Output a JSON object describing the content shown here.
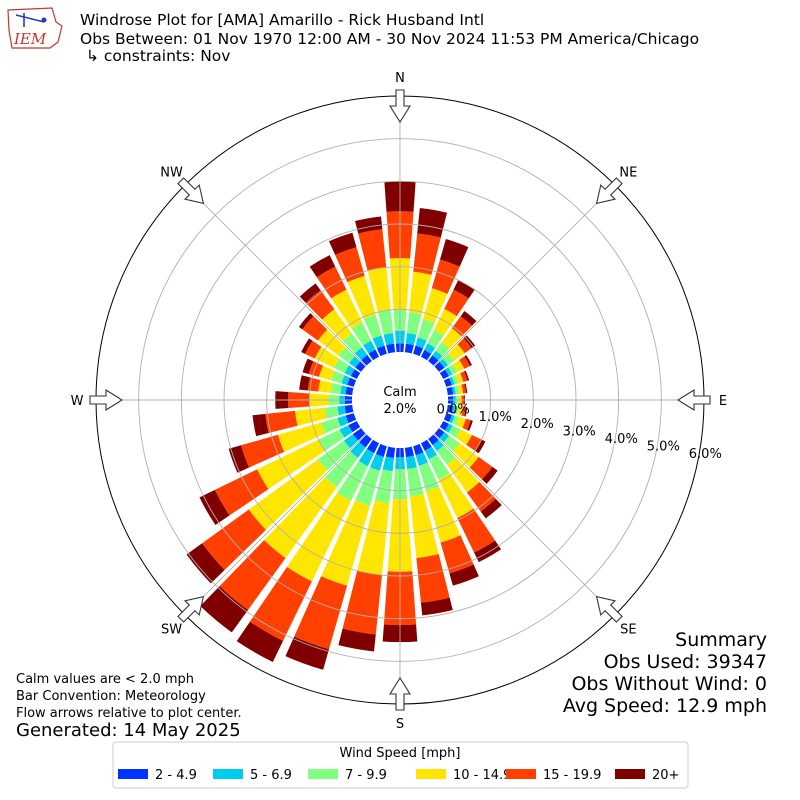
{
  "header": {
    "logo_text": "IEM",
    "title": "Windrose Plot for [AMA] Amarillo - Rick Husband Intl",
    "subtitle": "Obs Between: 01 Nov 1970 12:00 AM - 30 Nov 2024 11:53 PM America/Chicago",
    "constraints": "↳ constraints: Nov"
  },
  "notes": {
    "calm_values": "Calm values are < 2.0 mph",
    "bar_convention": "Bar Convention: Meteorology",
    "flow_arrows": "Flow arrows relative to plot center.",
    "generated": "Generated: 14 May 2025"
  },
  "summary": {
    "heading": "Summary",
    "obs_used": "Obs Used: 39347",
    "obs_without_wind": "Obs Without Wind: 0",
    "avg_speed": "Avg Speed: 12.9 mph"
  },
  "colors": {
    "bin_2_4_9": "#0033ff",
    "bin_5_6_9": "#00ccee",
    "bin_7_9_9": "#80ff80",
    "bin_10_14_9": "#ffe600",
    "bin_15_19_9": "#ff4000",
    "bin_20_plus": "#800000",
    "grid": "#b0b0b0"
  },
  "chart_data": {
    "type": "windrose",
    "calm_label": "Calm",
    "calm_value_label": "2.0%",
    "calm_percent": 2.0,
    "radial_max": 6.0,
    "radial_ticks": [
      0,
      1,
      2,
      3,
      4,
      5,
      6
    ],
    "radial_tick_labels": [
      "0.0%",
      "1.0%",
      "2.0%",
      "3.0%",
      "4.0%",
      "5.0%",
      "6.0%"
    ],
    "compass_labels": [
      {
        "label": "N",
        "deg": 0
      },
      {
        "label": "NE",
        "deg": 45
      },
      {
        "label": "E",
        "deg": 90
      },
      {
        "label": "SE",
        "deg": 135
      },
      {
        "label": "S",
        "deg": 180
      },
      {
        "label": "SW",
        "deg": 225
      },
      {
        "label": "W",
        "deg": 270
      },
      {
        "label": "NW",
        "deg": 315
      }
    ],
    "legend_title": "Wind Speed [mph]",
    "bins": [
      {
        "label": "2 - 4.9",
        "color": "#0033ff"
      },
      {
        "label": "5 - 6.9",
        "color": "#00ccee"
      },
      {
        "label": "7 - 9.9",
        "color": "#80ff80"
      },
      {
        "label": "10 - 14.9",
        "color": "#ffe600"
      },
      {
        "label": "15 - 19.9",
        "color": "#ff4000"
      },
      {
        "label": "20+",
        "color": "#800000"
      }
    ],
    "directions_deg": [
      0,
      10,
      20,
      30,
      40,
      50,
      60,
      70,
      80,
      90,
      100,
      110,
      120,
      130,
      140,
      150,
      160,
      170,
      180,
      190,
      200,
      210,
      220,
      230,
      240,
      250,
      260,
      270,
      280,
      290,
      300,
      310,
      320,
      330,
      340,
      350
    ],
    "cumulative_percent": [
      [
        0.2,
        0.5,
        1.0,
        2.2,
        3.3,
        4.0
      ],
      [
        0.2,
        0.45,
        0.95,
        1.9,
        2.8,
        3.4
      ],
      [
        0.2,
        0.4,
        0.85,
        1.6,
        2.3,
        2.8
      ],
      [
        0.18,
        0.35,
        0.7,
        1.25,
        1.75,
        2.0
      ],
      [
        0.17,
        0.3,
        0.55,
        0.95,
        1.3,
        1.45
      ],
      [
        0.16,
        0.27,
        0.45,
        0.75,
        0.95,
        1.05
      ],
      [
        0.15,
        0.24,
        0.37,
        0.55,
        0.7,
        0.75
      ],
      [
        0.14,
        0.21,
        0.3,
        0.42,
        0.52,
        0.56
      ],
      [
        0.13,
        0.19,
        0.26,
        0.36,
        0.43,
        0.46
      ],
      [
        0.12,
        0.18,
        0.25,
        0.32,
        0.38,
        0.4
      ],
      [
        0.13,
        0.19,
        0.26,
        0.36,
        0.43,
        0.46
      ],
      [
        0.14,
        0.21,
        0.32,
        0.48,
        0.6,
        0.65
      ],
      [
        0.15,
        0.25,
        0.45,
        0.75,
        1.0,
        1.1
      ],
      [
        0.16,
        0.3,
        0.6,
        1.15,
        1.55,
        1.7
      ],
      [
        0.18,
        0.35,
        0.75,
        1.55,
        2.1,
        2.3
      ],
      [
        0.2,
        0.42,
        0.95,
        1.95,
        2.85,
        3.1
      ],
      [
        0.22,
        0.48,
        1.1,
        2.35,
        3.1,
        3.4
      ],
      [
        0.22,
        0.5,
        1.15,
        2.6,
        3.65,
        3.95
      ],
      [
        0.22,
        0.5,
        1.2,
        2.9,
        4.15,
        4.55
      ],
      [
        0.24,
        0.55,
        1.3,
        3.0,
        4.4,
        4.8
      ],
      [
        0.26,
        0.6,
        1.45,
        3.4,
        4.95,
        5.45
      ],
      [
        0.26,
        0.6,
        1.5,
        3.6,
        5.15,
        5.7
      ],
      [
        0.25,
        0.55,
        1.4,
        3.45,
        4.95,
        5.6
      ],
      [
        0.24,
        0.5,
        1.25,
        3.25,
        4.6,
        5.05
      ],
      [
        0.22,
        0.45,
        1.0,
        2.6,
        3.7,
        4.1
      ],
      [
        0.2,
        0.4,
        0.8,
        1.85,
        2.75,
        3.05
      ],
      [
        0.18,
        0.35,
        0.65,
        1.35,
        2.05,
        2.35
      ],
      [
        0.17,
        0.3,
        0.55,
        1.0,
        1.5,
        1.8
      ],
      [
        0.16,
        0.28,
        0.5,
        0.8,
        1.05,
        1.25
      ],
      [
        0.16,
        0.3,
        0.55,
        0.85,
        1.1,
        1.25
      ],
      [
        0.16,
        0.32,
        0.6,
        1.1,
        1.35,
        1.45
      ],
      [
        0.17,
        0.35,
        0.65,
        1.25,
        1.7,
        1.8
      ],
      [
        0.18,
        0.4,
        0.8,
        1.5,
        2.05,
        2.25
      ],
      [
        0.19,
        0.42,
        0.9,
        1.75,
        2.35,
        2.65
      ],
      [
        0.2,
        0.45,
        0.95,
        1.9,
        2.6,
        2.95
      ],
      [
        0.2,
        0.45,
        1.0,
        2.0,
        2.9,
        3.2
      ]
    ]
  }
}
